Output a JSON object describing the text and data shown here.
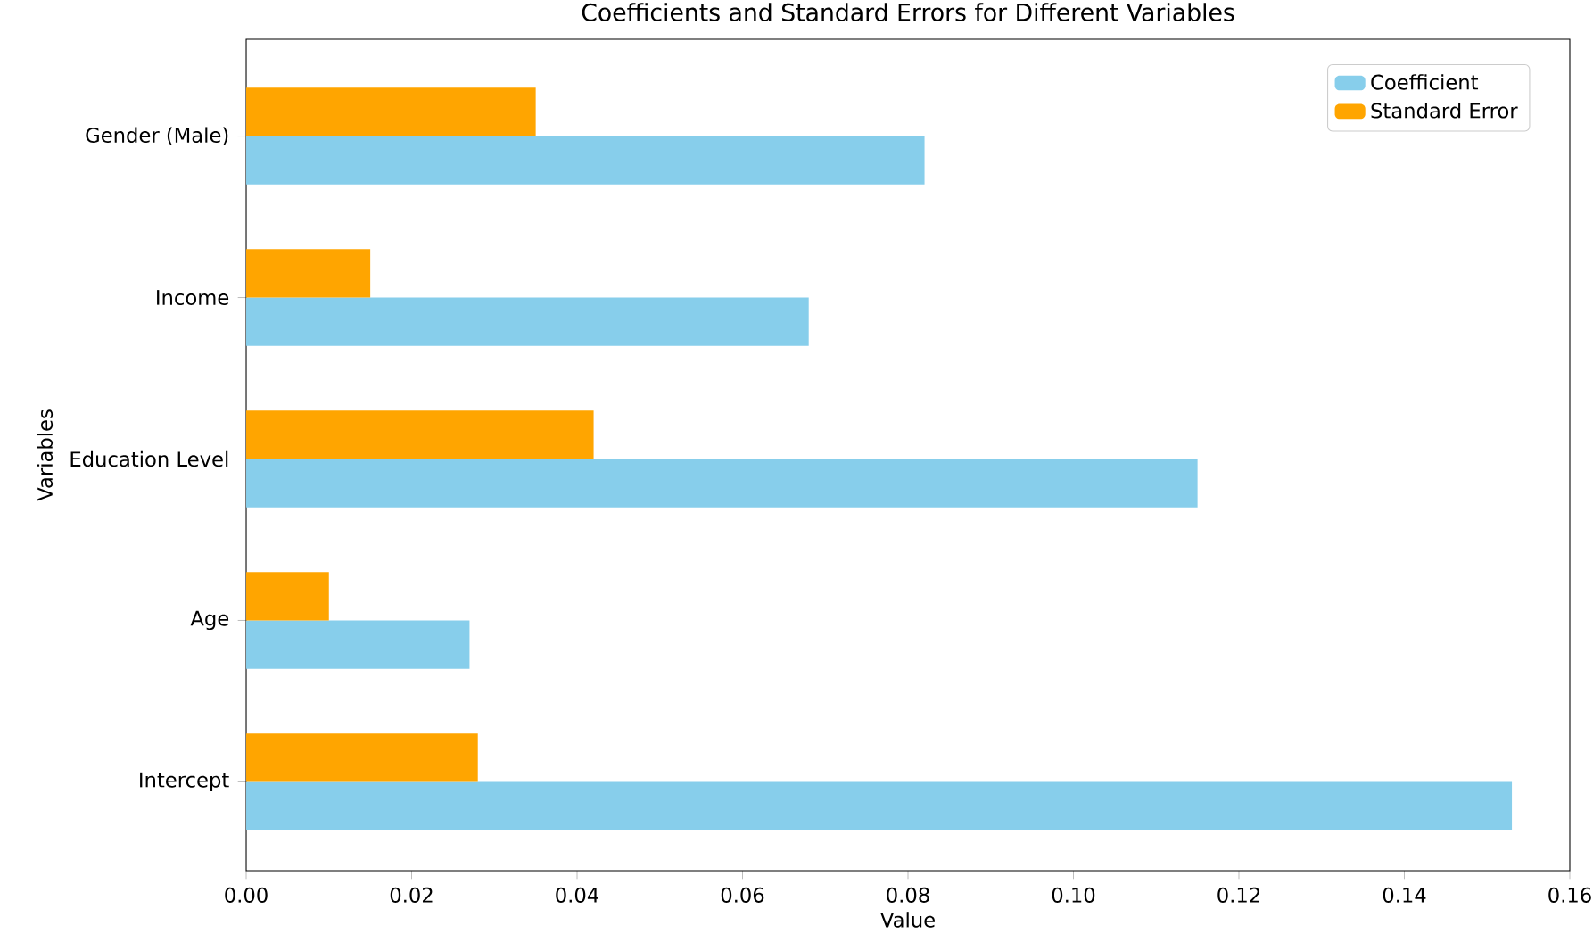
{
  "chart_data": {
    "type": "bar",
    "orientation": "horizontal",
    "title": "Coefficients and Standard Errors for Different Variables",
    "xlabel": "Value",
    "ylabel": "Variables",
    "categories": [
      "Gender (Male)",
      "Income",
      "Education Level",
      "Age",
      "Intercept"
    ],
    "series": [
      {
        "name": "Coefficient",
        "color": "#87ceeb",
        "values": [
          0.082,
          0.068,
          0.115,
          0.027,
          0.153
        ]
      },
      {
        "name": "Standard Error",
        "color": "#ffa500",
        "values": [
          0.035,
          0.015,
          0.042,
          0.01,
          0.028
        ]
      }
    ],
    "xlim": [
      0,
      0.16
    ],
    "xticks": [
      {
        "value": 0,
        "label": "0.00"
      },
      {
        "value": 0.02,
        "label": "0.02"
      },
      {
        "value": 0.04,
        "label": "0.04"
      },
      {
        "value": 0.06,
        "label": "0.06"
      },
      {
        "value": 0.08,
        "label": "0.08"
      },
      {
        "value": 0.1,
        "label": "0.10"
      },
      {
        "value": 0.12,
        "label": "0.12"
      },
      {
        "value": 0.14,
        "label": "0.14"
      },
      {
        "value": 0.16,
        "label": "0.16"
      }
    ],
    "legend": "top right"
  }
}
